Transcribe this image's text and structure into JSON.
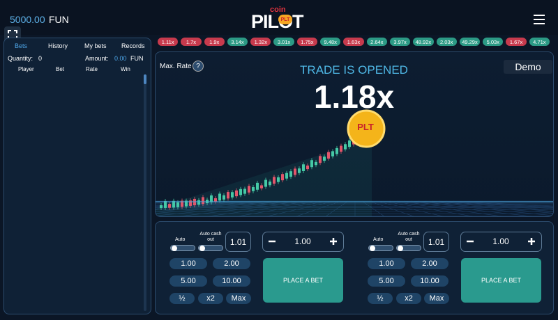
{
  "header": {
    "balance": "5000.00",
    "currency": "FUN",
    "logo_top": "coin",
    "logo_main": "PILOT",
    "logo_badge": "PLT"
  },
  "history": [
    {
      "label": "1.11x",
      "tone": "loss"
    },
    {
      "label": "1.7x",
      "tone": "loss"
    },
    {
      "label": "1.9x",
      "tone": "loss"
    },
    {
      "label": "3.14x",
      "tone": "win"
    },
    {
      "label": "1.32x",
      "tone": "loss"
    },
    {
      "label": "3.01x",
      "tone": "win"
    },
    {
      "label": "1.75x",
      "tone": "loss"
    },
    {
      "label": "9.48x",
      "tone": "win"
    },
    {
      "label": "1.63x",
      "tone": "loss"
    },
    {
      "label": "2.64x",
      "tone": "win"
    },
    {
      "label": "3.97x",
      "tone": "win"
    },
    {
      "label": "48.92x",
      "tone": "win"
    },
    {
      "label": "2.03x",
      "tone": "win"
    },
    {
      "label": "49.29x",
      "tone": "win"
    },
    {
      "label": "5.03x",
      "tone": "win"
    },
    {
      "label": "1.67x",
      "tone": "loss"
    },
    {
      "label": "4.71x",
      "tone": "win"
    }
  ],
  "bets_panel": {
    "tabs": [
      "Bets",
      "History",
      "My bets",
      "Records"
    ],
    "quantity_label": "Quantity:",
    "quantity": "0",
    "amount_label": "Amount:",
    "amount": "0.00",
    "currency": "FUN",
    "columns": [
      "Player",
      "Bet",
      "Rate",
      "Win"
    ]
  },
  "game": {
    "max_rate_label": "Max. Rate",
    "help": "?",
    "status": "TRADE IS OPENED",
    "mode": "Demo",
    "multiplier": "1.18x",
    "coin": "PLT"
  },
  "bet_panels": [
    {
      "auto": "Auto",
      "auto_cashout": "Auto cash out",
      "cashout_value": "1.01",
      "amount": "1.00",
      "presets": [
        "1.00",
        "2.00",
        "5.00",
        "10.00"
      ],
      "half": "½",
      "double": "x2",
      "max": "Max",
      "button": "PLACE A BET"
    },
    {
      "auto": "Auto",
      "auto_cashout": "Auto cash out",
      "cashout_value": "1.01",
      "amount": "1.00",
      "presets": [
        "1.00",
        "2.00",
        "5.00",
        "10.00"
      ],
      "half": "½",
      "double": "x2",
      "max": "Max",
      "button": "PLACE A BET"
    }
  ]
}
